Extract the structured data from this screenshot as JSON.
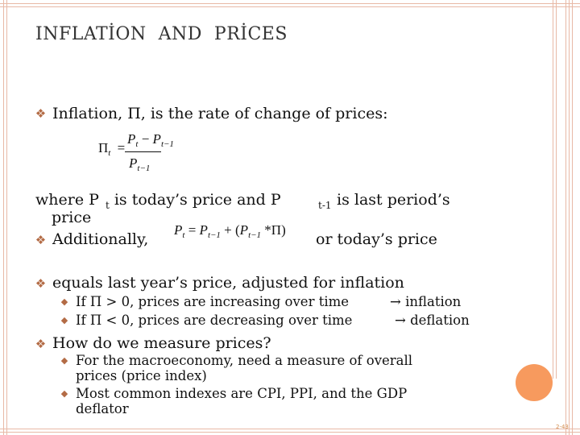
{
  "slide": {
    "title": "INFLATİON  AND  PRİCES",
    "bullet1": "Inflation,   Π, is the rate of change of prices:",
    "formula1": {
      "lhs": "Π",
      "lhs_sub": "t",
      "equals": "=",
      "num_p1": "P",
      "num_s1": "t",
      "num_minus": " − ",
      "num_p2": "P",
      "num_s2": "t−1",
      "den_p": "P",
      "den_s": "t−1"
    },
    "where": {
      "part1": "where P",
      "sub_t": "t",
      "part2": "is today’s price and P",
      "sub_t1": "t-1",
      "part3": "is last period’s",
      "cont": "price"
    },
    "bullet2": "Additionally,",
    "formula2": {
      "p": "P",
      "s": "t",
      "eq": " = ",
      "p2": "P",
      "s2": "t−1",
      "plus": " + (",
      "p3": "P",
      "s3": "t−1",
      "tail": " *Π)"
    },
    "bullet2_tail": "or today’s price",
    "bullet3": "equals last year’s price, adjusted for inflation",
    "sub3": [
      {
        "text": "If Π > 0, prices are increasing over time",
        "arrow": "→ inflation"
      },
      {
        "text": "If Π < 0, prices are decreasing over time",
        "arrow": "→ deflation"
      }
    ],
    "bullet4": "How do we measure prices?",
    "sub4": [
      {
        "line1": "For the macroeconomy, need a measure of overall",
        "line2": "prices (price index)"
      },
      {
        "line1": "Most common indexes are CPI, PPI, and the GDP",
        "line2": "deflator"
      }
    ],
    "slide_number": "2-43",
    "colors": {
      "accent": "#b36b45",
      "frame": "#e8b9a6",
      "circle": "#f79a5e"
    }
  }
}
